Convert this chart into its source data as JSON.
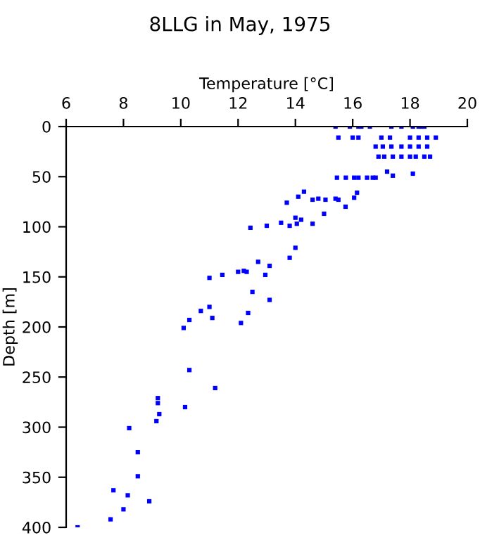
{
  "chart_data": {
    "type": "scatter",
    "title": "8LLG in May, 1975",
    "xlabel": "Temperature [°C]",
    "ylabel": "Depth [m]",
    "xlim": [
      6,
      20
    ],
    "xticks": [
      6,
      8,
      10,
      12,
      14,
      16,
      18,
      20
    ],
    "ylim": [
      400,
      0
    ],
    "yticks": [
      0,
      50,
      100,
      150,
      200,
      250,
      300,
      350,
      400
    ],
    "grid": false,
    "marker": "square",
    "series": [
      {
        "color": "#0000ff",
        "x": [
          15.4,
          15.9,
          16.2,
          16.3,
          16.6,
          17.35,
          17.7,
          18.1,
          18.3,
          18.4,
          18.5,
          15.5,
          16.0,
          16.2,
          17.0,
          17.3,
          18.0,
          18.3,
          18.6,
          18.9,
          16.8,
          17.05,
          17.35,
          17.7,
          18.0,
          18.3,
          18.6,
          16.9,
          17.1,
          17.4,
          17.7,
          18.0,
          18.2,
          18.5,
          18.7,
          17.2,
          17.4,
          18.1,
          15.45,
          15.76,
          16.05,
          16.2,
          16.5,
          16.7,
          16.8,
          14.3,
          14.1,
          13.7,
          14.6,
          14.8,
          15.05,
          15.4,
          15.5,
          15.75,
          16.05,
          16.15,
          15.0,
          14.0,
          14.2,
          14.6,
          14.05,
          13.5,
          13.8,
          13.0,
          12.43,
          13.8,
          14.0,
          13.1,
          12.95,
          12.7,
          12.2,
          12.0,
          12.3,
          11.45,
          11.0,
          13.1,
          12.5,
          12.35,
          12.1,
          11.0,
          10.7,
          11.1,
          10.3,
          10.1,
          10.3,
          11.2,
          9.2,
          9.2,
          10.15,
          9.25,
          9.15,
          8.2,
          8.5,
          8.5,
          7.65,
          8.15,
          8.0,
          8.9,
          7.55,
          6.4
        ],
        "values": [
          0,
          0,
          0,
          0,
          0,
          0,
          0,
          0,
          0,
          0,
          0,
          11,
          11,
          11,
          11,
          11,
          11,
          11,
          11,
          11,
          20,
          20,
          20,
          20,
          20,
          20,
          20,
          30,
          30,
          30,
          30,
          30,
          30,
          30,
          30,
          45,
          49,
          47,
          51,
          51,
          51,
          51,
          51,
          51,
          51,
          65,
          70,
          76,
          73,
          72,
          73,
          72,
          73,
          80,
          71,
          66,
          87,
          91,
          93,
          97,
          97,
          96,
          99,
          99,
          101,
          131,
          121,
          139,
          148,
          135,
          144,
          145,
          145,
          148,
          151,
          173,
          165,
          186,
          196,
          180,
          184,
          191,
          193,
          201,
          243,
          261,
          271,
          276,
          280,
          287,
          294,
          301,
          325,
          349,
          363,
          368,
          382,
          374,
          392,
          400
        ]
      }
    ]
  }
}
